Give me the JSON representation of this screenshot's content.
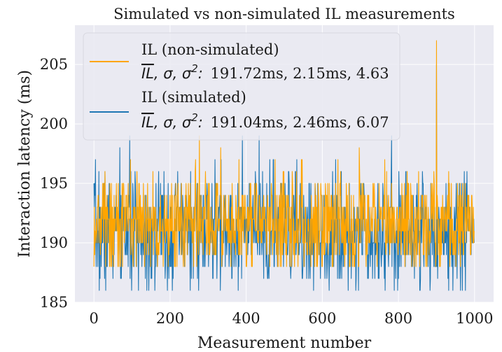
{
  "chart_data": {
    "type": "line",
    "title": "Simulated vs non-simulated IL measurements",
    "xlabel": "Measurement number",
    "ylabel": "Interaction latency (ms)",
    "xlim": [
      -50,
      1050
    ],
    "ylim": [
      185,
      208.3
    ],
    "xticks": [
      0,
      200,
      400,
      600,
      800,
      1000
    ],
    "yticks": [
      185,
      190,
      195,
      200,
      205
    ],
    "xtick_labels": [
      "0",
      "200",
      "400",
      "600",
      "800",
      "1000"
    ],
    "ytick_labels": [
      "185",
      "190",
      "195",
      "200",
      "205"
    ],
    "grid": true,
    "legend_position": "upper-left",
    "legend_stats_prefix": "IL, σ, σ2:",
    "series": [
      {
        "name": "IL (simulated)",
        "color": "#1f77b4",
        "stats": "191.04ms, 2.46ms, 6.07",
        "mean": 191.04,
        "std": 2.46,
        "var": 6.07,
        "min": 186,
        "max": 205,
        "n_points": 1000,
        "seed": 7
      },
      {
        "name": "IL (non-simulated)",
        "color": "#ffa500",
        "stats": "191.72ms, 2.15ms, 4.63",
        "mean": 191.72,
        "std": 2.15,
        "var": 4.63,
        "min": 188,
        "max": 207,
        "n_points": 1000,
        "seed": 13
      }
    ]
  }
}
